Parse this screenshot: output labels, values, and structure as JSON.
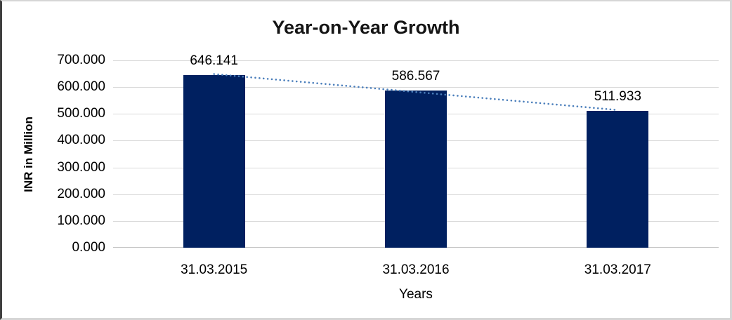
{
  "chart_data": {
    "type": "bar",
    "title": "Year-on-Year Growth",
    "xlabel": "Years",
    "ylabel": "INR in Million",
    "categories": [
      "31.03.2015",
      "31.03.2016",
      "31.03.2017"
    ],
    "values": [
      646.141,
      586.567,
      511.933
    ],
    "data_labels": [
      "646.141",
      "586.567",
      "511.933"
    ],
    "ylim": [
      0,
      700
    ],
    "ytick_step": 100,
    "ytick_labels": [
      "0.000",
      "100.000",
      "200.000",
      "300.000",
      "400.000",
      "500.000",
      "600.000",
      "700.000"
    ],
    "grid": true,
    "legend": "none",
    "bar_color": "#002060",
    "gridline_color": "#d9d9d9",
    "trendline": {
      "type": "linear",
      "style": "dotted",
      "color": "#4a7ebb",
      "start_value": 648.7,
      "end_value": 514.4
    }
  }
}
